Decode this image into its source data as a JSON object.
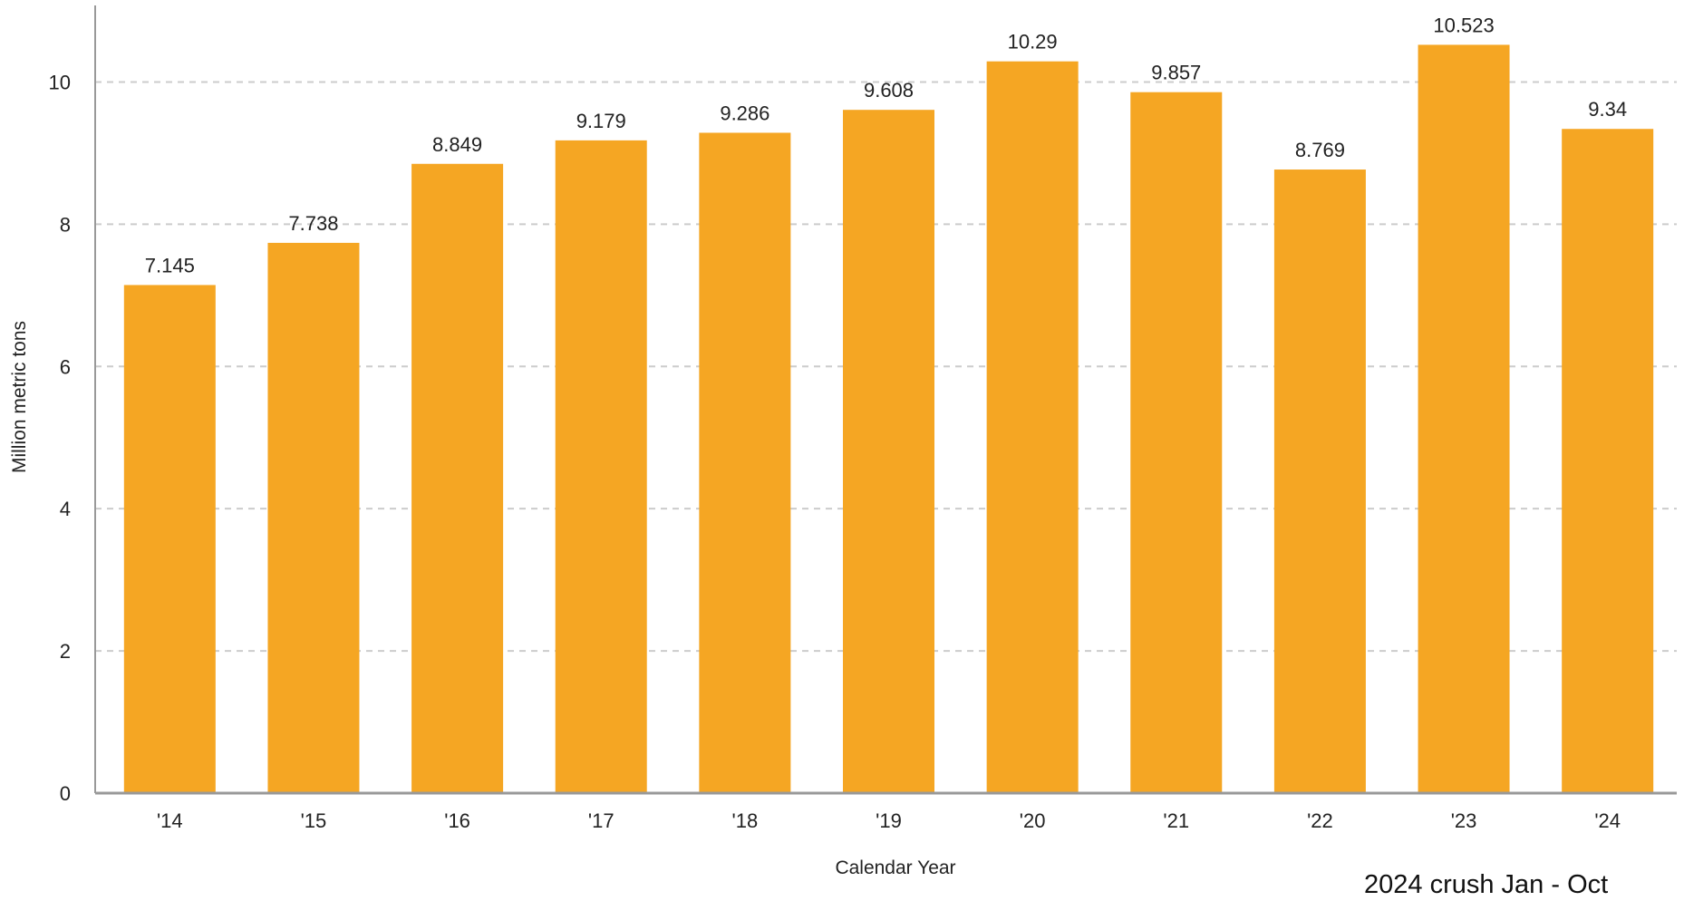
{
  "chart_data": {
    "type": "bar",
    "categories": [
      "'14",
      "'15",
      "'16",
      "'17",
      "'18",
      "'19",
      "'20",
      "'21",
      "'22",
      "'23",
      "'24"
    ],
    "values": [
      7.145,
      7.738,
      8.849,
      9.179,
      9.286,
      9.608,
      10.29,
      9.857,
      8.769,
      10.523,
      9.34
    ],
    "value_labels": [
      "7.145",
      "7.738",
      "8.849",
      "9.179",
      "9.286",
      "9.608",
      "10.29",
      "9.857",
      "8.769",
      "10.523",
      "9.34"
    ],
    "xlabel": "Calendar Year",
    "ylabel": "Million metric tons",
    "ylim": [
      0,
      11
    ],
    "yticks": [
      0,
      2,
      4,
      6,
      8,
      10
    ],
    "grid": true,
    "bar_color": "#F5A623",
    "grid_color": "#cccccc",
    "axis_color": "#999999"
  },
  "footnote": "2024 crush Jan - Oct"
}
